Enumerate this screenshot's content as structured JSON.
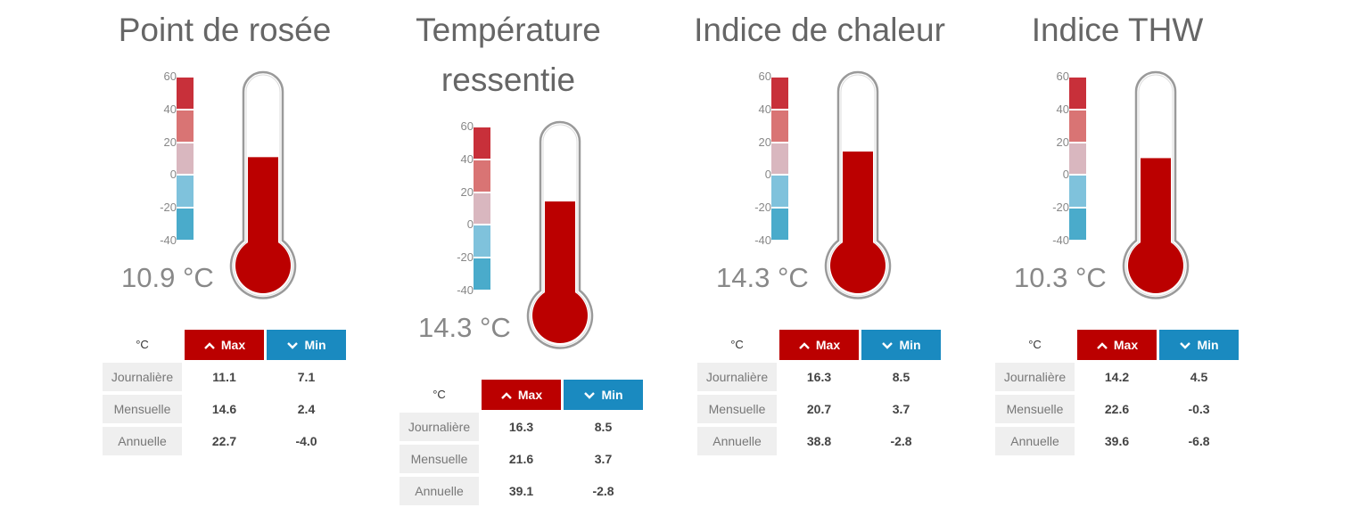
{
  "colors": {
    "mercury": "#bb0000",
    "max_header": "#bb0000",
    "min_header": "#1a8ac0",
    "scale_bands": [
      "#c8303a",
      "#d97474",
      "#d9b7bf",
      "#7fc2dc",
      "#4aabcb"
    ]
  },
  "scale": {
    "ticks": [
      "60",
      "40",
      "20",
      "0",
      "-20",
      "-40"
    ],
    "min": -40,
    "max": 60
  },
  "panels": [
    {
      "title": "Point de rosée",
      "reading": "10.9 °C",
      "fill_value": 10.9,
      "table": {
        "unit": "°C",
        "max_label": "Max",
        "min_label": "Min",
        "rows": [
          {
            "label": "Journalière",
            "max": "11.1",
            "min": "7.1"
          },
          {
            "label": "Mensuelle",
            "max": "14.6",
            "min": "2.4"
          },
          {
            "label": "Annuelle",
            "max": "22.7",
            "min": "-4.0"
          }
        ]
      }
    },
    {
      "title": "Température ressentie",
      "reading": "14.3 °C",
      "fill_value": 14.3,
      "table": {
        "unit": "°C",
        "max_label": "Max",
        "min_label": "Min",
        "rows": [
          {
            "label": "Journalière",
            "max": "16.3",
            "min": "8.5"
          },
          {
            "label": "Mensuelle",
            "max": "21.6",
            "min": "3.7"
          },
          {
            "label": "Annuelle",
            "max": "39.1",
            "min": "-2.8"
          }
        ]
      }
    },
    {
      "title": "Indice de chaleur",
      "reading": "14.3 °C",
      "fill_value": 14.3,
      "table": {
        "unit": "°C",
        "max_label": "Max",
        "min_label": "Min",
        "rows": [
          {
            "label": "Journalière",
            "max": "16.3",
            "min": "8.5"
          },
          {
            "label": "Mensuelle",
            "max": "20.7",
            "min": "3.7"
          },
          {
            "label": "Annuelle",
            "max": "38.8",
            "min": "-2.8"
          }
        ]
      }
    },
    {
      "title": "Indice THW",
      "reading": "10.3 °C",
      "fill_value": 10.3,
      "table": {
        "unit": "°C",
        "max_label": "Max",
        "min_label": "Min",
        "rows": [
          {
            "label": "Journalière",
            "max": "14.2",
            "min": "4.5"
          },
          {
            "label": "Mensuelle",
            "max": "22.6",
            "min": "-0.3"
          },
          {
            "label": "Annuelle",
            "max": "39.6",
            "min": "-6.8"
          }
        ]
      }
    }
  ]
}
